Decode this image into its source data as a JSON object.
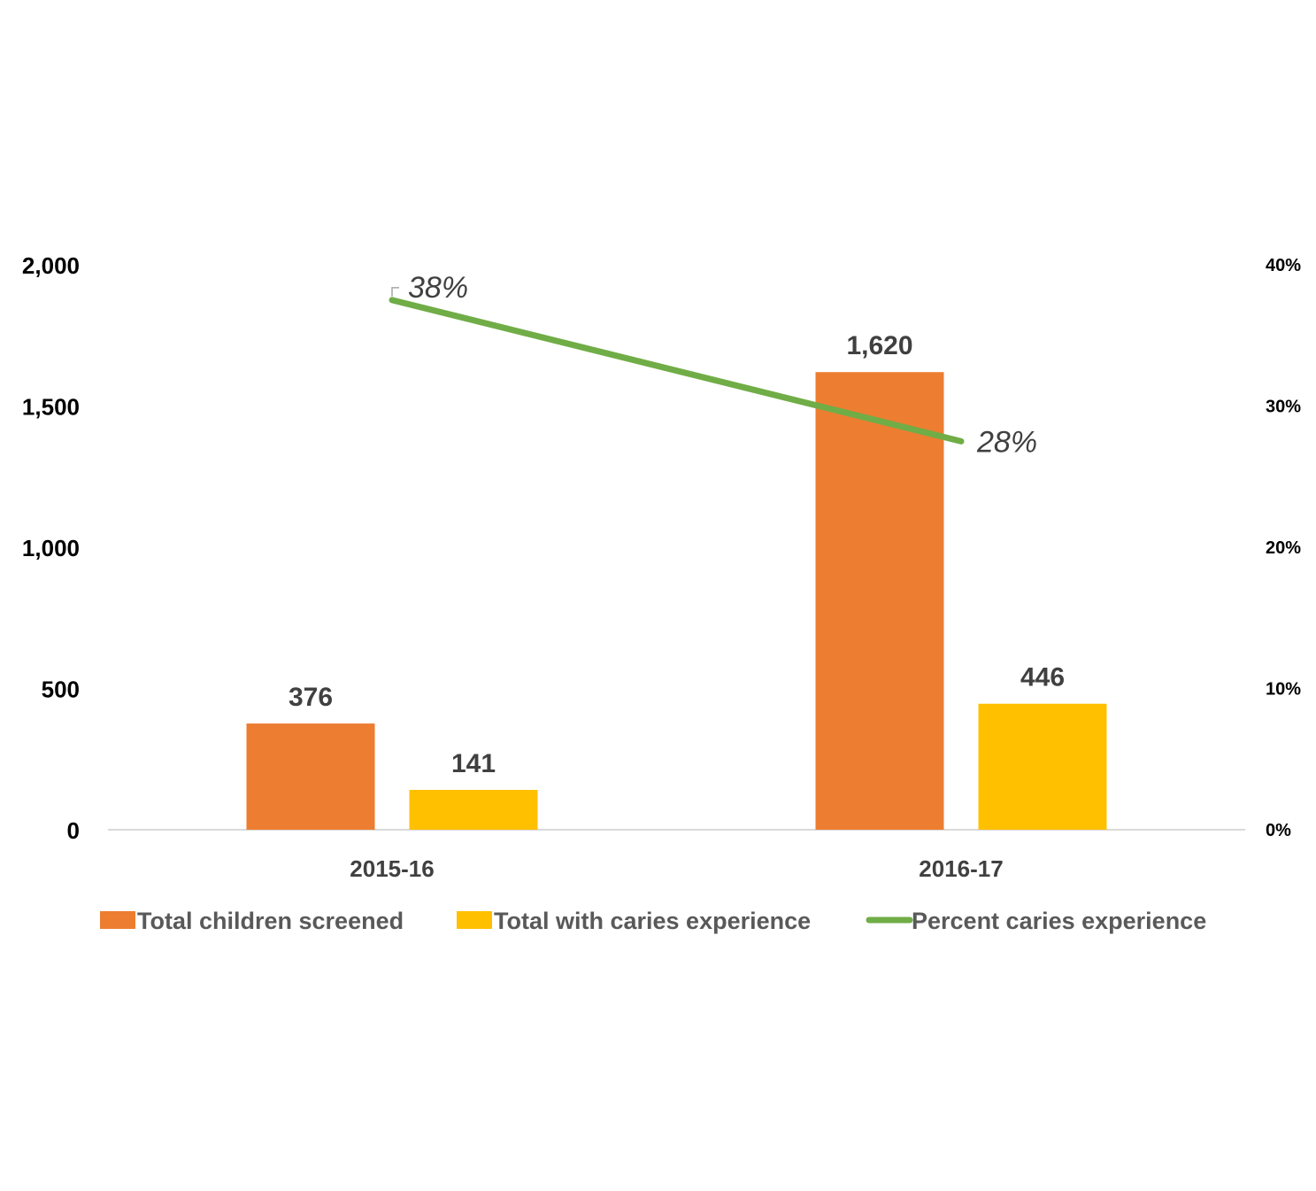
{
  "chart_data": {
    "type": "bar",
    "categories": [
      "2015-16",
      "2016-17"
    ],
    "series": [
      {
        "name": "Total children screened",
        "type": "bar",
        "axis": "left",
        "color": "#ED7D31",
        "values": [
          376,
          1620
        ],
        "labels": [
          "376",
          "1,620"
        ]
      },
      {
        "name": "Total with caries experience",
        "type": "bar",
        "axis": "left",
        "color": "#FFC000",
        "values": [
          141,
          446
        ],
        "labels": [
          "141",
          "446"
        ]
      },
      {
        "name": "Percent caries experience",
        "type": "line",
        "axis": "right",
        "color": "#70AD47",
        "values": [
          37.5,
          27.5
        ],
        "labels": [
          "38%",
          "28%"
        ]
      }
    ],
    "y_left": {
      "ylim": [
        0,
        2000
      ],
      "ticks": [
        0,
        500,
        1000,
        1500,
        2000
      ],
      "tick_labels": [
        "0",
        "500",
        "1,000",
        "1,500",
        "2,000"
      ]
    },
    "y_right": {
      "ylim": [
        0,
        40
      ],
      "ticks": [
        0,
        10,
        20,
        30,
        40
      ],
      "tick_labels": [
        "0%",
        "10%",
        "20%",
        "30%",
        "40%"
      ]
    },
    "grid": false,
    "legend_position": "bottom",
    "title": "",
    "xlabel": "",
    "ylabel": ""
  }
}
